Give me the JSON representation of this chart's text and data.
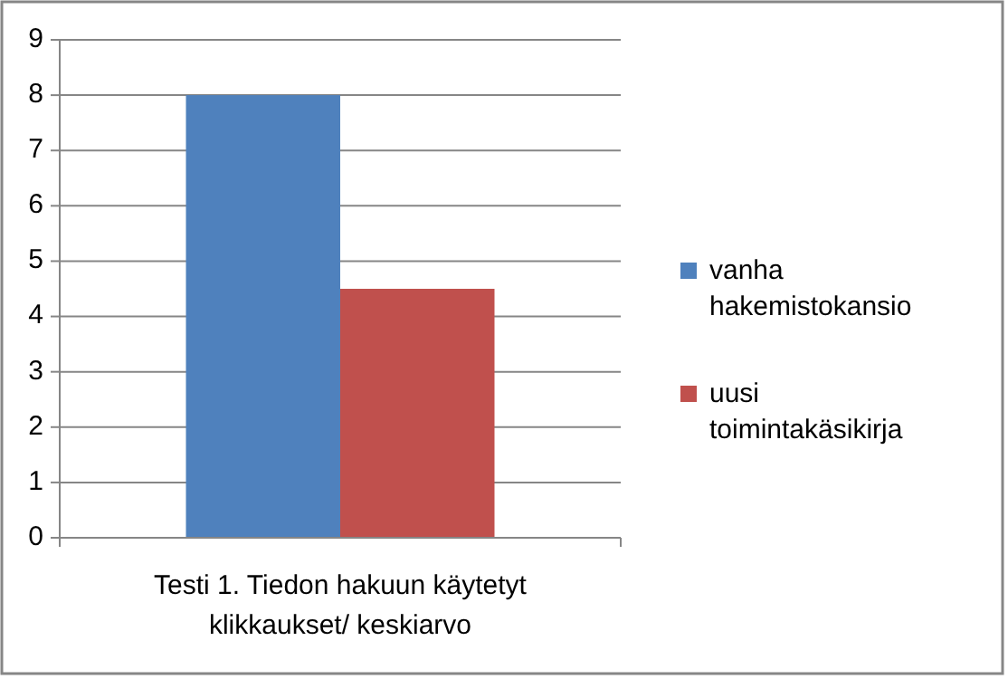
{
  "chart_data": {
    "type": "bar",
    "categories": [
      "Testi 1. Tiedon hakuun käytetyt klikkaukset/ keskiarvo"
    ],
    "series": [
      {
        "name": "vanha hakemistokansio",
        "color": "#4f81bd",
        "values": [
          8
        ]
      },
      {
        "name": "uusi toimintakäsikirja",
        "color": "#c0504d",
        "values": [
          4.5
        ]
      }
    ],
    "ylim": [
      0,
      9
    ],
    "yticks": [
      0,
      1,
      2,
      3,
      4,
      5,
      6,
      7,
      8,
      9
    ],
    "grid": "y",
    "legend": "right"
  }
}
